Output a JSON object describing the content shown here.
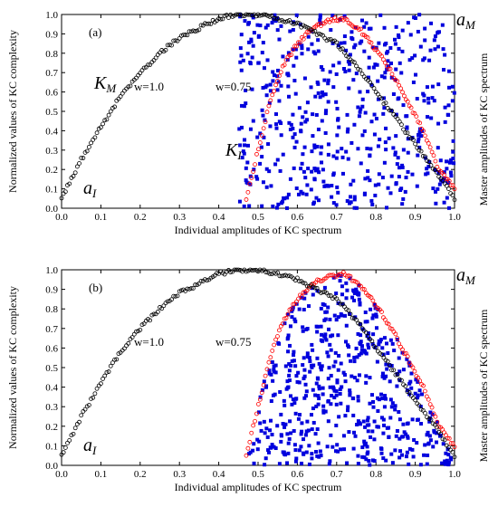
{
  "chart_data": [
    {
      "type": "scatter",
      "panel_label": "(a)",
      "xlabel": "Individual amplitudes of KC spectrum",
      "ylabel": "Normalized values of KC complexity",
      "ylabel_right": "Master amplitudes of KC spectrum",
      "xlim": [
        0.0,
        1.0
      ],
      "ylim": [
        0.0,
        1.0
      ],
      "xticks": [
        "0.0",
        "0.1",
        "0.2",
        "0.3",
        "0.4",
        "0.5",
        "0.6",
        "0.7",
        "0.8",
        "0.9",
        "1.0"
      ],
      "yticks": [
        "0.0",
        "0.1",
        "0.2",
        "0.3",
        "0.4",
        "0.5",
        "0.6",
        "0.7",
        "0.8",
        "0.9",
        "1.0"
      ],
      "annotations": {
        "aI_main": "a",
        "aI_sub": "I",
        "aM_main": "a",
        "aM_sub": "M",
        "KM_main": "K",
        "KM_sub": "M",
        "KI_main": "K",
        "KI_sub": "I",
        "w1": "w=1.0",
        "w075": "w=0.75"
      },
      "colors": {
        "KM": "#000000",
        "KI": "#ff0000",
        "samples": "#0000dd"
      },
      "series": [
        {
          "kind": "KM",
          "x": [
            0.0,
            0.05,
            0.1,
            0.15,
            0.2,
            0.25,
            0.3,
            0.35,
            0.4,
            0.45,
            0.5,
            0.55,
            0.6,
            0.65,
            0.7,
            0.75,
            0.8,
            0.85,
            0.9,
            0.95,
            1.0
          ],
          "y": [
            0.05,
            0.25,
            0.42,
            0.58,
            0.7,
            0.8,
            0.88,
            0.93,
            0.98,
            1.0,
            1.0,
            0.98,
            0.95,
            0.9,
            0.85,
            0.74,
            0.6,
            0.47,
            0.33,
            0.2,
            0.05
          ]
        },
        {
          "kind": "KI",
          "x": [
            0.47,
            0.5,
            0.53,
            0.56,
            0.6,
            0.64,
            0.68,
            0.72,
            0.76,
            0.8,
            0.84,
            0.88,
            0.92,
            0.96,
            1.0
          ],
          "y": [
            0.05,
            0.3,
            0.55,
            0.72,
            0.85,
            0.93,
            0.97,
            0.98,
            0.92,
            0.82,
            0.7,
            0.55,
            0.4,
            0.2,
            0.1
          ]
        },
        {
          "kind": "samples",
          "count": 540,
          "x_range": [
            0.45,
            1.0
          ],
          "y_range": [
            0.0,
            1.0
          ],
          "seed": 7,
          "shape": "full"
        }
      ]
    },
    {
      "type": "scatter",
      "panel_label": "(b)",
      "xlabel": "Individual amplitudes of KC spectrum",
      "ylabel": "Normalized values of KC complexity",
      "ylabel_right": "Master amplitudes of KC spectrum",
      "xlim": [
        0.0,
        1.0
      ],
      "ylim": [
        0.0,
        1.0
      ],
      "xticks": [
        "0.0",
        "0.1",
        "0.2",
        "0.3",
        "0.4",
        "0.5",
        "0.6",
        "0.7",
        "0.8",
        "0.9",
        "1.0"
      ],
      "yticks": [
        "0.0",
        "0.1",
        "0.2",
        "0.3",
        "0.4",
        "0.5",
        "0.6",
        "0.7",
        "0.8",
        "0.9",
        "1.0"
      ],
      "annotations": {
        "aI_main": "a",
        "aI_sub": "I",
        "aM_main": "a",
        "aM_sub": "M",
        "w1": "w=1.0",
        "w075": "w=0.75"
      },
      "colors": {
        "KM": "#000000",
        "KI": "#ff0000",
        "samples": "#0000dd"
      },
      "series": [
        {
          "kind": "KM",
          "x": [
            0.0,
            0.05,
            0.1,
            0.15,
            0.2,
            0.25,
            0.3,
            0.35,
            0.4,
            0.45,
            0.5,
            0.55,
            0.6,
            0.65,
            0.7,
            0.75,
            0.8,
            0.85,
            0.9,
            0.95,
            1.0
          ],
          "y": [
            0.05,
            0.25,
            0.42,
            0.58,
            0.7,
            0.8,
            0.88,
            0.93,
            0.98,
            1.0,
            1.0,
            0.98,
            0.95,
            0.9,
            0.85,
            0.74,
            0.6,
            0.47,
            0.33,
            0.2,
            0.05
          ]
        },
        {
          "kind": "KI",
          "x": [
            0.47,
            0.5,
            0.53,
            0.56,
            0.6,
            0.64,
            0.68,
            0.72,
            0.76,
            0.8,
            0.84,
            0.88,
            0.92,
            0.96,
            1.0
          ],
          "y": [
            0.05,
            0.3,
            0.55,
            0.72,
            0.85,
            0.93,
            0.97,
            0.98,
            0.92,
            0.82,
            0.7,
            0.55,
            0.4,
            0.2,
            0.1
          ]
        },
        {
          "kind": "samples",
          "count": 560,
          "x_range": [
            0.47,
            1.0
          ],
          "y_range": [
            0.0,
            1.0
          ],
          "seed": 13,
          "shape": "under-curve"
        }
      ]
    }
  ]
}
